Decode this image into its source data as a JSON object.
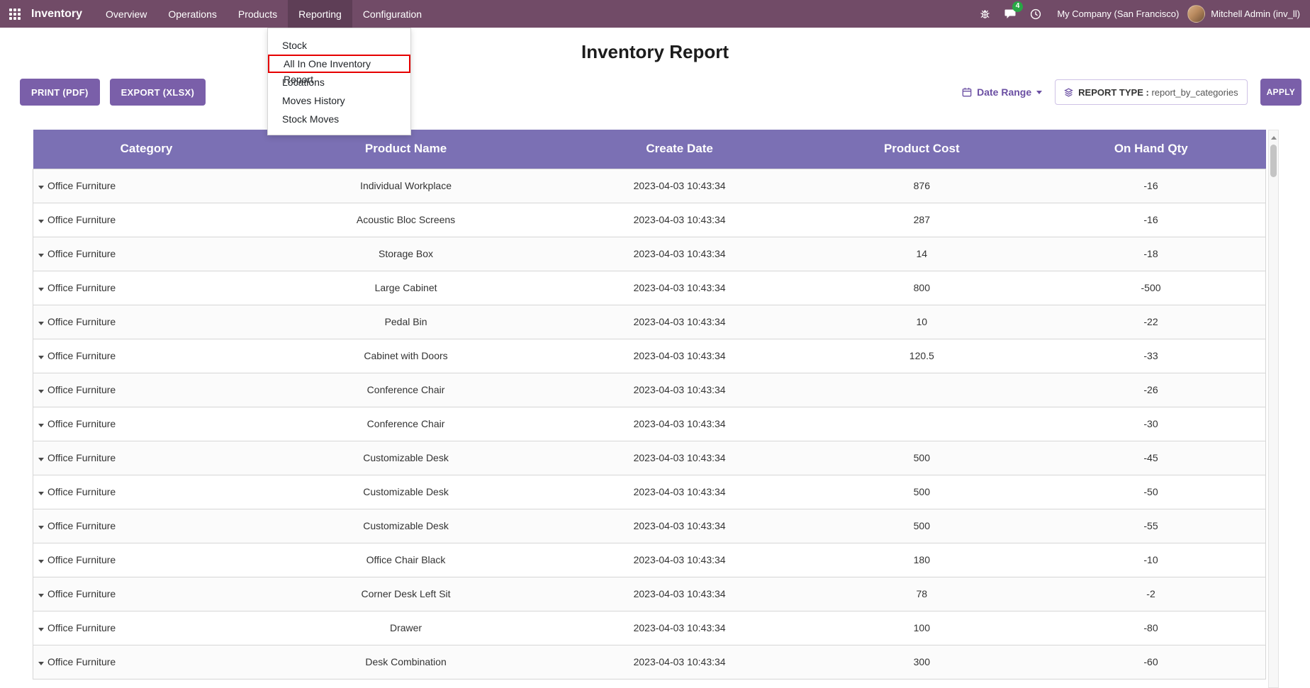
{
  "colors": {
    "brand": "#714B67",
    "button": "#7A5FA9",
    "table_header": "#7B70B4",
    "badge": "#28a745",
    "highlight": "#e60000",
    "accent_text": "#6B4FA3"
  },
  "navbar": {
    "app_name": "Inventory",
    "items": [
      "Overview",
      "Operations",
      "Products",
      "Reporting",
      "Configuration"
    ],
    "active_item": "Reporting",
    "message_count": "4",
    "company": "My Company (San Francisco)",
    "user": "Mitchell Admin (inv_ll)"
  },
  "reporting_menu": {
    "items": [
      "Stock",
      "All In One Inventory Report",
      "Locations",
      "Moves History",
      "Stock Moves"
    ],
    "highlighted_item": "All In One Inventory Report"
  },
  "page": {
    "title": "Inventory Report",
    "print_button": "PRINT (PDF)",
    "export_button": "EXPORT (XLSX)",
    "date_range": "Date Range",
    "report_type_label": "REPORT TYPE :",
    "report_type_value": "report_by_categories",
    "apply_button": "APPLY"
  },
  "table": {
    "headers": [
      "Category",
      "Product Name",
      "Create Date",
      "Product Cost",
      "On Hand Qty"
    ],
    "rows": [
      {
        "category": "Office Furniture",
        "product": "Individual Workplace",
        "date": "2023-04-03 10:43:34",
        "cost": "876",
        "qty": "-16"
      },
      {
        "category": "Office Furniture",
        "product": "Acoustic Bloc Screens",
        "date": "2023-04-03 10:43:34",
        "cost": "287",
        "qty": "-16"
      },
      {
        "category": "Office Furniture",
        "product": "Storage Box",
        "date": "2023-04-03 10:43:34",
        "cost": "14",
        "qty": "-18"
      },
      {
        "category": "Office Furniture",
        "product": "Large Cabinet",
        "date": "2023-04-03 10:43:34",
        "cost": "800",
        "qty": "-500"
      },
      {
        "category": "Office Furniture",
        "product": "Pedal Bin",
        "date": "2023-04-03 10:43:34",
        "cost": "10",
        "qty": "-22"
      },
      {
        "category": "Office Furniture",
        "product": "Cabinet with Doors",
        "date": "2023-04-03 10:43:34",
        "cost": "120.5",
        "qty": "-33"
      },
      {
        "category": "Office Furniture",
        "product": "Conference Chair",
        "date": "2023-04-03 10:43:34",
        "cost": "",
        "qty": "-26"
      },
      {
        "category": "Office Furniture",
        "product": "Conference Chair",
        "date": "2023-04-03 10:43:34",
        "cost": "",
        "qty": "-30"
      },
      {
        "category": "Office Furniture",
        "product": "Customizable Desk",
        "date": "2023-04-03 10:43:34",
        "cost": "500",
        "qty": "-45"
      },
      {
        "category": "Office Furniture",
        "product": "Customizable Desk",
        "date": "2023-04-03 10:43:34",
        "cost": "500",
        "qty": "-50"
      },
      {
        "category": "Office Furniture",
        "product": "Customizable Desk",
        "date": "2023-04-03 10:43:34",
        "cost": "500",
        "qty": "-55"
      },
      {
        "category": "Office Furniture",
        "product": "Office Chair Black",
        "date": "2023-04-03 10:43:34",
        "cost": "180",
        "qty": "-10"
      },
      {
        "category": "Office Furniture",
        "product": "Corner Desk Left Sit",
        "date": "2023-04-03 10:43:34",
        "cost": "78",
        "qty": "-2"
      },
      {
        "category": "Office Furniture",
        "product": "Drawer",
        "date": "2023-04-03 10:43:34",
        "cost": "100",
        "qty": "-80"
      },
      {
        "category": "Office Furniture",
        "product": "Desk Combination",
        "date": "2023-04-03 10:43:34",
        "cost": "300",
        "qty": "-60"
      }
    ]
  }
}
